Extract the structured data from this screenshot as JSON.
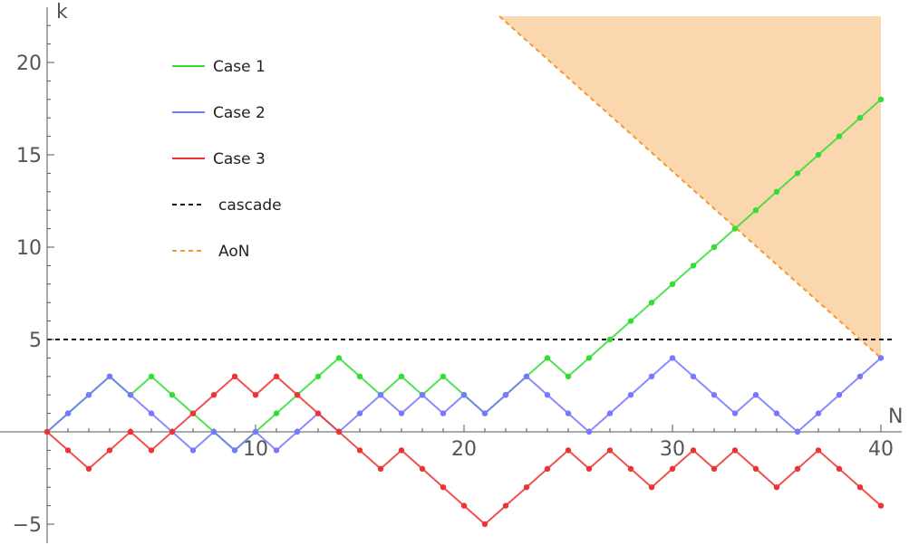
{
  "chart_data": {
    "type": "line",
    "xlabel": "N",
    "ylabel": "k",
    "xlim": [
      0,
      40.6
    ],
    "ylim": [
      -5.5,
      22.5
    ],
    "x_ticks": [
      10,
      20,
      30,
      40
    ],
    "y_ticks": [
      -5,
      5,
      10,
      15,
      20
    ],
    "x_tick_labels": [
      "10",
      "20",
      "30",
      "40"
    ],
    "y_tick_labels": [
      "−5",
      "5",
      "10",
      "15",
      "20"
    ],
    "grid": false,
    "legend_position": "top-left",
    "x": [
      0,
      1,
      2,
      3,
      4,
      5,
      6,
      7,
      8,
      9,
      10,
      11,
      12,
      13,
      14,
      15,
      16,
      17,
      18,
      19,
      20,
      21,
      22,
      23,
      24,
      25,
      26,
      27,
      28,
      29,
      30,
      31,
      32,
      33,
      34,
      35,
      36,
      37,
      38,
      39,
      40
    ],
    "series": [
      {
        "name": "Case 1",
        "style": "solid",
        "color": "#33dd33",
        "values": [
          0,
          1,
          2,
          3,
          2,
          3,
          2,
          1,
          0,
          -1,
          0,
          1,
          2,
          3,
          4,
          3,
          2,
          3,
          2,
          3,
          2,
          1,
          2,
          3,
          4,
          3,
          4,
          5,
          6,
          7,
          8,
          9,
          10,
          11,
          12,
          13,
          14,
          15,
          16,
          17,
          18
        ]
      },
      {
        "name": "Case 2",
        "style": "solid",
        "color": "#7777ff",
        "values": [
          0,
          1,
          2,
          3,
          2,
          1,
          0,
          -1,
          0,
          -1,
          0,
          -1,
          0,
          1,
          0,
          1,
          2,
          1,
          2,
          1,
          2,
          1,
          2,
          3,
          2,
          1,
          0,
          1,
          2,
          3,
          4,
          3,
          2,
          1,
          2,
          1,
          0,
          1,
          2,
          3,
          4
        ]
      },
      {
        "name": "Case 3",
        "style": "solid",
        "color": "#ee3333",
        "values": [
          0,
          -1,
          -2,
          -1,
          0,
          -1,
          0,
          1,
          2,
          3,
          2,
          3,
          2,
          1,
          0,
          -1,
          -2,
          -1,
          -2,
          -3,
          -4,
          -5,
          -4,
          -3,
          -2,
          -1,
          -2,
          -1,
          -2,
          -3,
          -2,
          -1,
          -2,
          -1,
          -2,
          -3,
          -2,
          -1,
          -2,
          -3,
          -4
        ]
      },
      {
        "name": "cascade",
        "style": "dashed",
        "color": "#111111",
        "x": [
          0,
          40.6
        ],
        "values": [
          5,
          5
        ]
      },
      {
        "name": "AoN",
        "style": "dashed",
        "color": "#f39a2e",
        "x": [
          21.7,
          40
        ],
        "values": [
          22.5,
          4
        ]
      }
    ],
    "shaded_region": {
      "color": "#fbd7b0",
      "polygon": [
        [
          21.7,
          22.5
        ],
        [
          40,
          22.5
        ],
        [
          40,
          4
        ]
      ]
    }
  }
}
